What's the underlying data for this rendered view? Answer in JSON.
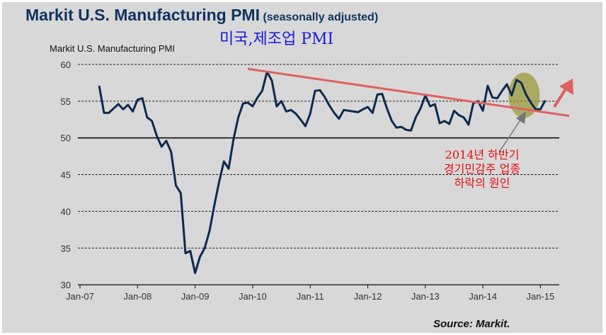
{
  "header": {
    "title": "Markit U.S. Manufacturing PMI",
    "title_suffix": "(seasonally adjusted)",
    "korean_title": "미국,제조업 PMI"
  },
  "annotation": {
    "lines": [
      "2014년 하반기",
      "경기민감주 업종",
      "하락의 원인"
    ],
    "color": "#e81010"
  },
  "source": "Source: Markit.",
  "chart_data": {
    "type": "line",
    "title": "Markit U.S. Manufacturing PMI",
    "ylabel": "Markit U.S. Manufacturing PMI",
    "xlabel": "",
    "ylim": [
      30,
      60
    ],
    "yticks": [
      "60",
      "55",
      "50",
      "45",
      "40",
      "35",
      "30"
    ],
    "ytick_values": [
      60,
      55,
      50,
      45,
      40,
      35,
      30
    ],
    "xticks": [
      "Jan-07",
      "Jan-08",
      "Jan-09",
      "Jan-10",
      "Jan-11",
      "Jan-12",
      "Jan-13",
      "Jan-14",
      "Jan-15"
    ],
    "grid": "horizontal dashed",
    "start_month": "2007-05",
    "series": [
      {
        "name": "Markit U.S. Manufacturing PMI",
        "color": "#0d2a4d",
        "values": [
          57.1,
          53.4,
          53.4,
          54.0,
          54.6,
          53.9,
          54.5,
          53.6,
          55.2,
          55.4,
          52.8,
          52.3,
          50.3,
          48.8,
          49.6,
          48.1,
          43.5,
          42.5,
          34.3,
          34.6,
          31.6,
          33.8,
          35.0,
          37.3,
          40.8,
          44.0,
          46.8,
          45.8,
          49.8,
          52.8,
          54.7,
          54.8,
          54.3,
          55.5,
          56.4,
          59.0,
          57.8,
          54.3,
          55.0,
          53.6,
          53.8,
          53.3,
          52.5,
          51.6,
          53.3,
          56.4,
          56.5,
          55.6,
          54.4,
          53.4,
          52.6,
          53.8,
          53.7,
          53.6,
          53.5,
          53.9,
          54.2,
          53.4,
          55.9,
          56.0,
          54.0,
          52.3,
          51.4,
          51.5,
          51.1,
          51.0,
          52.8,
          54.0,
          55.8,
          54.3,
          54.6,
          52.0,
          52.3,
          51.9,
          53.7,
          53.1,
          52.8,
          51.8,
          54.7,
          55.0,
          53.7,
          57.1,
          55.5,
          55.4,
          56.4,
          57.3,
          55.8,
          57.9,
          57.5,
          55.9,
          54.8,
          53.9,
          53.9,
          55.1
        ]
      }
    ],
    "trendline": {
      "from": [
        "2009-12",
        59.4
      ],
      "to": [
        "2015-07",
        53.0
      ],
      "color": "#e06060"
    },
    "highlight": {
      "center": [
        "2014-09",
        56.0
      ],
      "color": "#9a9a3a"
    },
    "up_arrow_color": "#e06060",
    "pointer_arrow_color": "#777777"
  }
}
